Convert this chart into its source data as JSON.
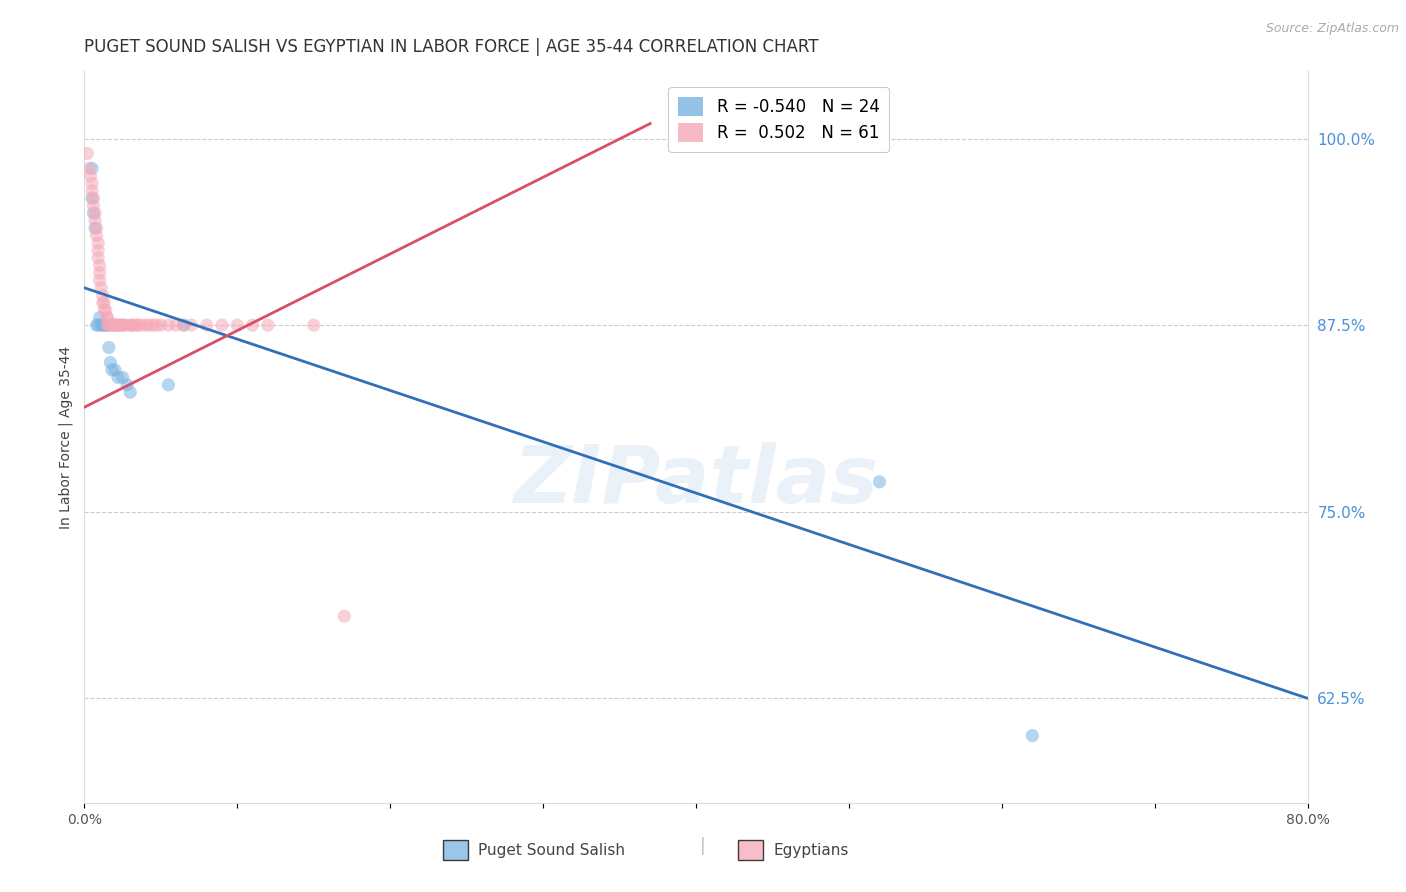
{
  "title": "PUGET SOUND SALISH VS EGYPTIAN IN LABOR FORCE | AGE 35-44 CORRELATION CHART",
  "source": "Source: ZipAtlas.com",
  "ylabel": "In Labor Force | Age 35-44",
  "y_tick_labels_right": [
    "100.0%",
    "87.5%",
    "75.0%",
    "62.5%"
  ],
  "y_ticks_right": [
    1.0,
    0.875,
    0.75,
    0.625
  ],
  "xlim": [
    0.0,
    0.8
  ],
  "ylim": [
    0.555,
    1.045
  ],
  "legend_r_blue": "R = -0.540",
  "legend_n_blue": "N = 24",
  "legend_r_pink": "R =  0.502",
  "legend_n_pink": "N = 61",
  "blue_scatter_x": [
    0.005,
    0.005,
    0.006,
    0.007,
    0.008,
    0.009,
    0.01,
    0.011,
    0.012,
    0.013,
    0.014,
    0.015,
    0.016,
    0.017,
    0.018,
    0.02,
    0.022,
    0.025,
    0.028,
    0.03,
    0.055,
    0.065,
    0.52,
    0.62
  ],
  "blue_scatter_y": [
    0.98,
    0.96,
    0.95,
    0.94,
    0.875,
    0.875,
    0.88,
    0.875,
    0.875,
    0.875,
    0.875,
    0.875,
    0.86,
    0.85,
    0.845,
    0.845,
    0.84,
    0.84,
    0.835,
    0.83,
    0.835,
    0.875,
    0.77,
    0.6
  ],
  "pink_scatter_x": [
    0.002,
    0.003,
    0.004,
    0.005,
    0.005,
    0.006,
    0.006,
    0.007,
    0.007,
    0.008,
    0.008,
    0.009,
    0.009,
    0.009,
    0.01,
    0.01,
    0.01,
    0.011,
    0.012,
    0.012,
    0.013,
    0.013,
    0.014,
    0.015,
    0.015,
    0.015,
    0.016,
    0.017,
    0.018,
    0.019,
    0.02,
    0.02,
    0.021,
    0.022,
    0.023,
    0.024,
    0.025,
    0.026,
    0.027,
    0.03,
    0.031,
    0.032,
    0.034,
    0.035,
    0.037,
    0.04,
    0.042,
    0.045,
    0.047,
    0.05,
    0.055,
    0.06,
    0.065,
    0.07,
    0.08,
    0.09,
    0.1,
    0.11,
    0.12,
    0.15,
    0.17
  ],
  "pink_scatter_y": [
    0.99,
    0.98,
    0.975,
    0.97,
    0.965,
    0.96,
    0.955,
    0.95,
    0.945,
    0.94,
    0.935,
    0.93,
    0.925,
    0.92,
    0.915,
    0.91,
    0.905,
    0.9,
    0.895,
    0.89,
    0.89,
    0.885,
    0.885,
    0.88,
    0.88,
    0.875,
    0.875,
    0.875,
    0.875,
    0.875,
    0.875,
    0.875,
    0.875,
    0.875,
    0.875,
    0.875,
    0.875,
    0.875,
    0.875,
    0.875,
    0.875,
    0.875,
    0.875,
    0.875,
    0.875,
    0.875,
    0.875,
    0.875,
    0.875,
    0.875,
    0.875,
    0.875,
    0.875,
    0.875,
    0.875,
    0.875,
    0.875,
    0.875,
    0.875,
    0.875,
    0.68
  ],
  "blue_line_x": [
    0.0,
    0.8
  ],
  "blue_line_y": [
    0.9,
    0.625
  ],
  "pink_line_x": [
    0.0,
    0.37
  ],
  "pink_line_y": [
    0.82,
    1.01
  ],
  "blue_color": "#7ab3e0",
  "pink_color": "#f5a8b8",
  "blue_line_color": "#3070b8",
  "pink_line_color": "#d94f6a",
  "scatter_size": 90,
  "scatter_alpha": 0.55,
  "watermark": "ZIPatlas",
  "background_color": "#ffffff",
  "grid_color": "#cccccc",
  "right_axis_color": "#4a90d9",
  "title_fontsize": 12,
  "axis_label_fontsize": 10,
  "tick_fontsize": 10
}
